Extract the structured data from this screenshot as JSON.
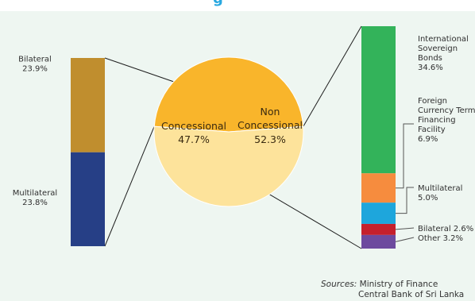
{
  "title_fragment": "g",
  "chart_data": [
    {
      "type": "pie",
      "labels": [
        "Concessional",
        "Non Concessional"
      ],
      "values": [
        47.7,
        52.3
      ],
      "value_labels": [
        "47.7%",
        "52.3%"
      ],
      "colors": [
        "#f9b52b",
        "#fde39b"
      ]
    },
    {
      "type": "bar",
      "stacked": true,
      "breakdown_of": "Concessional",
      "categories": [
        "Bilateral",
        "Multilateral"
      ],
      "values": [
        23.9,
        23.8
      ],
      "value_labels": [
        "23.9%",
        "23.8%"
      ],
      "colors": [
        "#c08e2e",
        "#263f86"
      ]
    },
    {
      "type": "bar",
      "stacked": true,
      "breakdown_of": "Non Concessional",
      "categories": [
        "International Sovereign Bonds",
        "Foreign Currency Term Financing Facility",
        "Multilateral",
        "Bilateral",
        "Other"
      ],
      "values": [
        34.6,
        6.9,
        5.0,
        2.6,
        3.2
      ],
      "value_labels": [
        "34.6%",
        "6.9%",
        "5.0%",
        "2.6%",
        "3.2%"
      ],
      "label_lines": [
        [
          "International",
          "Sovereign",
          "Bonds",
          "34.6%"
        ],
        [
          "Foreign",
          "Currency Term",
          "Financing",
          "Facility",
          "6.9%"
        ],
        [
          "Multilateral",
          "5.0%"
        ],
        [
          "Bilateral 2.6%"
        ],
        [
          "Other 3.2%"
        ]
      ],
      "colors": [
        "#33b35a",
        "#f68c3e",
        "#1ea6dc",
        "#c5202c",
        "#6d4a9e"
      ]
    }
  ],
  "sources": {
    "label": "Sources:",
    "line1": "Ministry of Finance",
    "line2": "Central Bank of Sri Lanka"
  }
}
